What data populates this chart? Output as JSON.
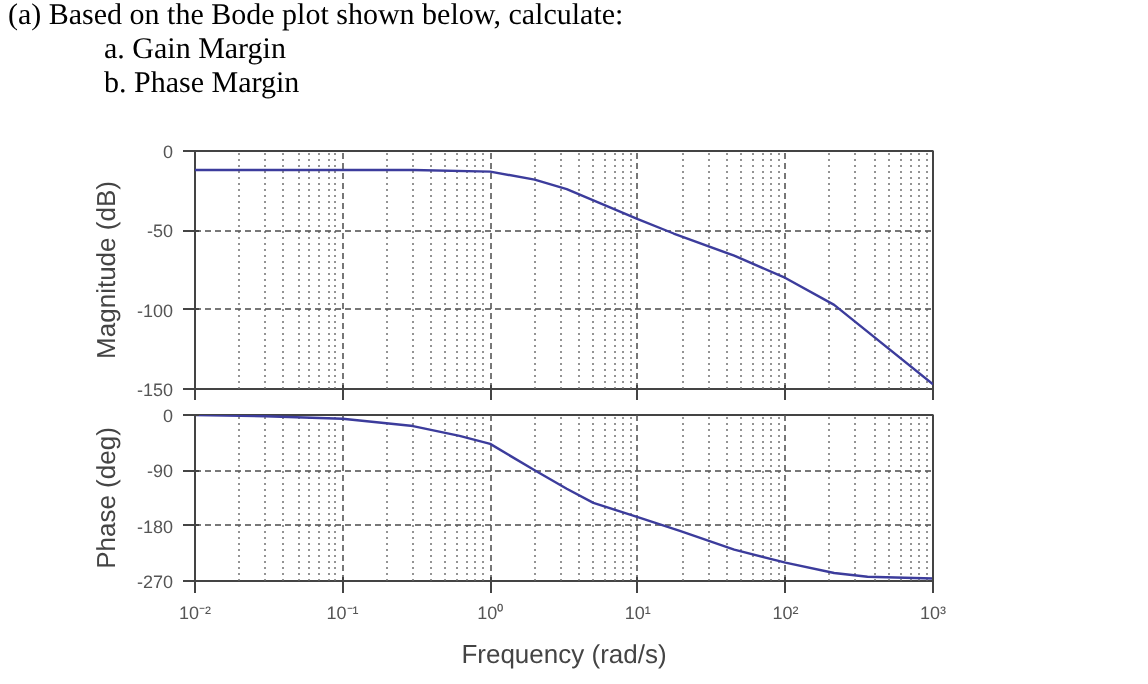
{
  "chart_data": [
    {
      "type": "line",
      "title": "(a) Based on the Bode plot shown below, calculate:",
      "annotations": [
        "a.  Gain Margin",
        "b.  Phase Margin"
      ],
      "ylabel": "Magnitude (dB)",
      "log": "x",
      "grid": true,
      "tick_labels": "y",
      "x": [
        0.01,
        0.03,
        0.3,
        1,
        2,
        3.3,
        10,
        17.5,
        45,
        100,
        214,
        1000
      ],
      "series": [
        {
          "color": "#3c3c9c",
          "values": [
            -12,
            -12,
            -12,
            -13,
            -18,
            -24,
            -43,
            -52,
            -66,
            -80,
            -97,
            -147
          ]
        }
      ],
      "xlim": [
        0.01,
        1000
      ],
      "xticks": [
        {
          "value": 0.01,
          "label": null
        },
        {
          "value": 0.1,
          "label": null
        },
        {
          "value": 1,
          "label": null
        },
        {
          "value": 10,
          "label": null
        },
        {
          "value": 100,
          "label": null
        },
        {
          "value": 1000,
          "label": null
        }
      ],
      "ylim": [
        -150,
        0
      ],
      "yticks": [
        0,
        -50,
        -100,
        -150
      ]
    },
    {
      "type": "line",
      "xlabel": "Frequency (rad/s)",
      "ylabel": "Phase (deg)",
      "log": "x",
      "grid": true,
      "x": [
        0.01,
        0.03,
        0.1,
        0.3,
        0.62,
        1,
        2,
        3.3,
        5,
        10,
        19.5,
        45,
        100,
        214,
        360,
        1000
      ],
      "series": [
        {
          "color": "#3c3c9c",
          "values": [
            0,
            -2,
            -6,
            -18,
            -34,
            -47,
            -90,
            -120,
            -143,
            -166,
            -189,
            -219,
            -240,
            -257,
            -263,
            -266
          ]
        }
      ],
      "xlim": [
        0.01,
        1000
      ],
      "xticks": [
        {
          "value": 0.01,
          "label": "10⁻²"
        },
        {
          "value": 0.1,
          "label": "10⁻¹"
        },
        {
          "value": 1,
          "label": "10⁰"
        },
        {
          "value": 10,
          "label": "10¹"
        },
        {
          "value": 100,
          "label": "10²"
        },
        {
          "value": 1000,
          "label": "10³"
        }
      ],
      "ylim": [
        -270,
        0
      ],
      "yticks": [
        0,
        -90,
        -180,
        -270
      ]
    }
  ]
}
